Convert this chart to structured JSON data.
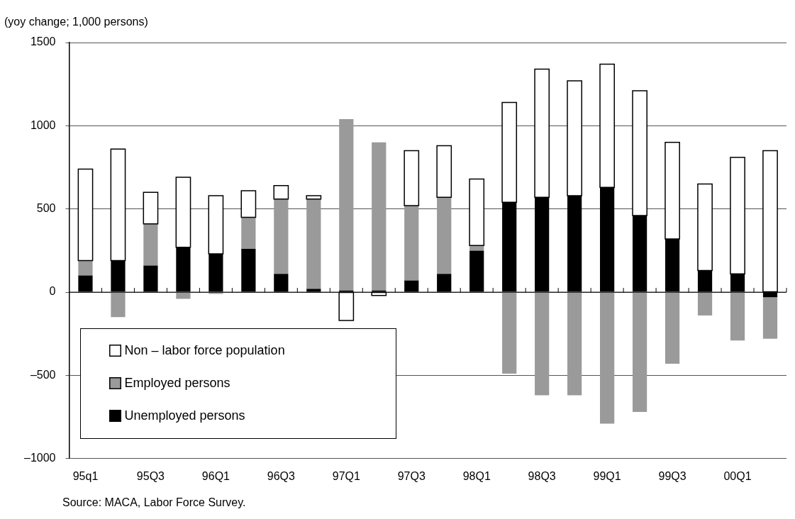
{
  "chart_data": {
    "type": "bar",
    "stacked": true,
    "ylabel": "(yoy change; 1,000 persons)",
    "categories": [
      "95q1",
      null,
      "95Q3",
      null,
      "96Q1",
      null,
      "96Q3",
      null,
      "97Q1",
      null,
      "97Q3",
      null,
      "98Q1",
      null,
      "98Q3",
      null,
      "99Q1",
      null,
      "99Q3",
      null,
      "00Q1",
      null
    ],
    "series": [
      {
        "name": "Unemployed persons",
        "color": "#000000",
        "values": [
          100,
          190,
          160,
          270,
          230,
          260,
          110,
          20,
          10,
          10,
          70,
          110,
          250,
          540,
          570,
          580,
          630,
          460,
          320,
          130,
          110,
          -30
        ]
      },
      {
        "name": "Employed persons",
        "color": "#9a9a9a",
        "values": [
          90,
          -150,
          250,
          -40,
          -10,
          190,
          450,
          540,
          1030,
          890,
          450,
          460,
          30,
          -490,
          -620,
          -620,
          -790,
          -720,
          -430,
          -140,
          -290,
          -250
        ]
      },
      {
        "name": "Non – labor force population",
        "color": "#ffffff",
        "values": [
          550,
          670,
          190,
          420,
          350,
          160,
          80,
          20,
          -170,
          -20,
          330,
          310,
          400,
          600,
          770,
          690,
          740,
          750,
          580,
          520,
          700,
          850
        ]
      }
    ],
    "ylim": [
      -1000,
      1500
    ],
    "yticks": [
      {
        "value": -1000,
        "label": "–1000"
      },
      {
        "value": -500,
        "label": "–500"
      },
      0,
      500,
      1000,
      1500
    ],
    "grid": "y",
    "legend": "bottom left",
    "annotations": [
      "Source: MACA, Labor Force Survey."
    ]
  }
}
